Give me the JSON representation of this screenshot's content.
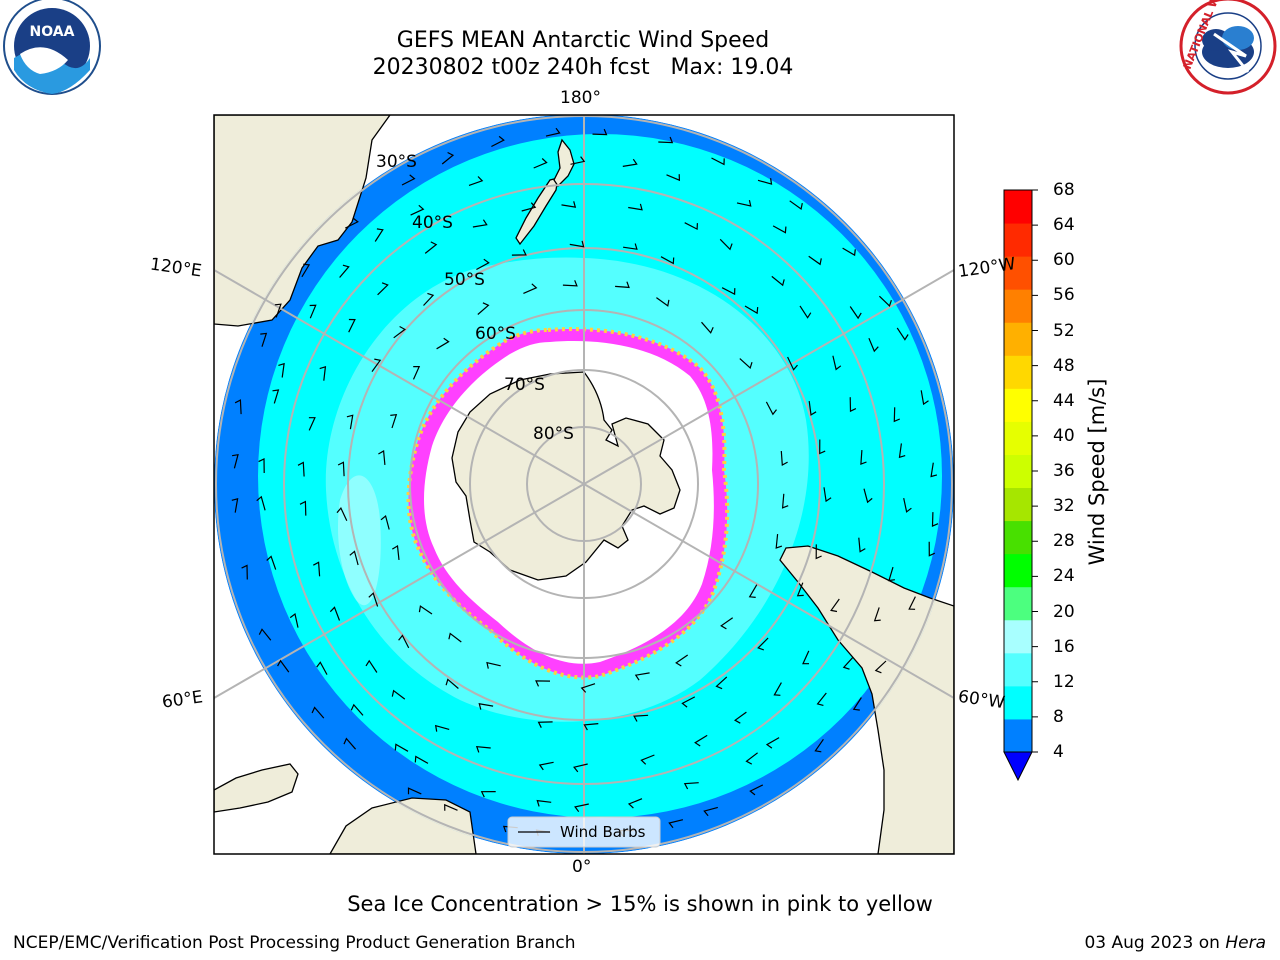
{
  "header": {
    "title_line1": "GEFS MEAN Antarctic Wind Speed",
    "title_line2": "20230802 t00z 240h fcst   Max: 19.04",
    "left_logo_text": "NOAA",
    "right_logo_text": "NATIONAL WEATHER SERVICE"
  },
  "map": {
    "projection": "south-polar-stereographic",
    "longitude_labels": {
      "top": "180°",
      "bottom": "0°",
      "left_upper": "120°E",
      "left_lower": "60°E",
      "right_upper": "120°W",
      "right_lower": "60°W"
    },
    "latitude_labels": [
      "30°S",
      "40°S",
      "50°S",
      "60°S",
      "70°S",
      "80°S"
    ],
    "legend_label": "Wind Barbs",
    "colors": {
      "land": "#efedda",
      "ocean_8_12": "#00ffff",
      "ocean_12_16": "#54ffff",
      "ocean_4_8": "#0080ff",
      "sea_ice_edge": "#ff40ff",
      "ice_interior": "#ffffff"
    }
  },
  "colorbar": {
    "label": "Wind Speed [m/s]",
    "ticks": [
      "68",
      "64",
      "60",
      "56",
      "52",
      "48",
      "44",
      "40",
      "36",
      "32",
      "28",
      "24",
      "20",
      "16",
      "12",
      "8",
      "4"
    ],
    "colors": [
      "#0000ff",
      "#0080ff",
      "#00ffff",
      "#54ffff",
      "#a8ffff",
      "#4cff7f",
      "#00ff00",
      "#48e000",
      "#a6e600",
      "#cdff00",
      "#e6ff00",
      "#ffff00",
      "#ffd800",
      "#ffb000",
      "#ff8000",
      "#ff5000",
      "#ff2a00",
      "#ff0000"
    ]
  },
  "footer": {
    "caption": "Sea Ice Concentration > 15% is shown in pink to yellow",
    "left_credit": "NCEP/EMC/Verification Post Processing Product Generation Branch",
    "right_date": "03 Aug 2023 on ",
    "right_machine": "Hera"
  }
}
